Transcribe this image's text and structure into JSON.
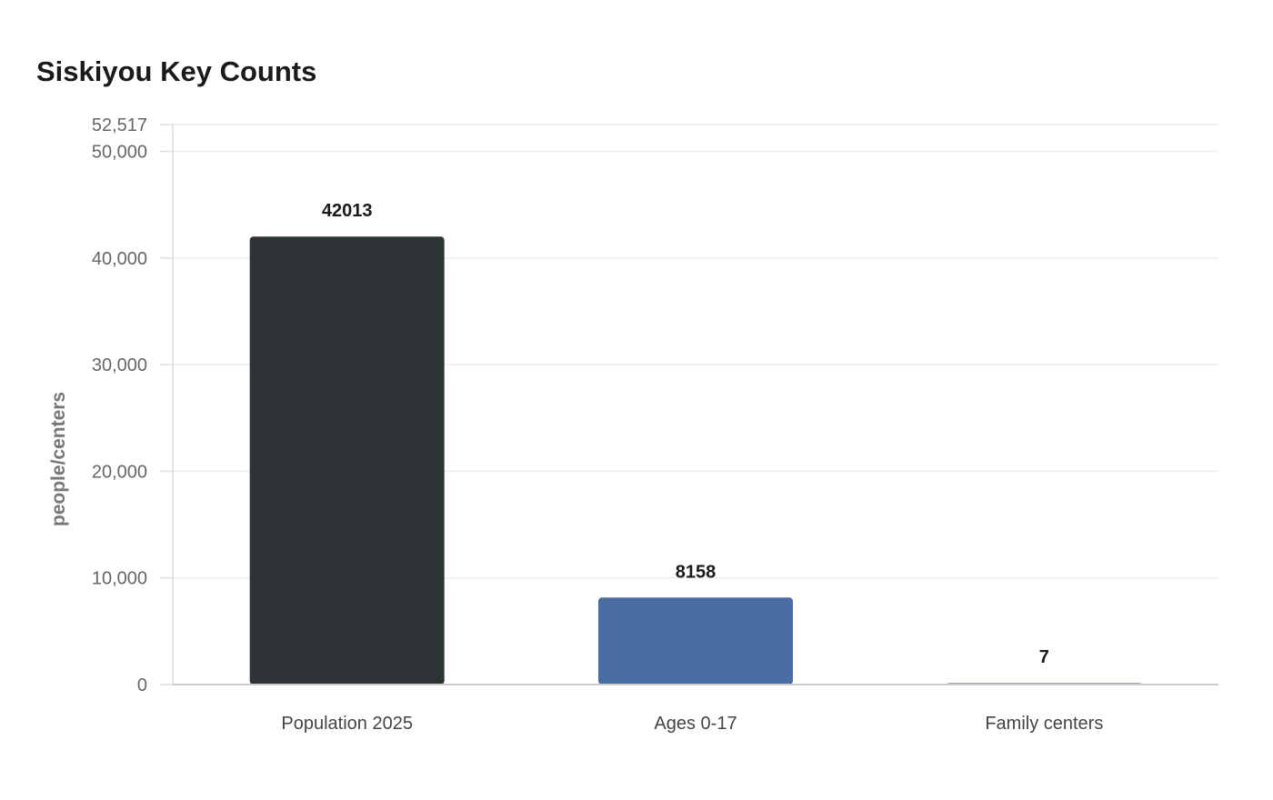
{
  "chart_data": {
    "type": "bar",
    "title": "Siskiyou Key Counts",
    "xlabel": "",
    "ylabel": "people/centers",
    "categories": [
      "Population 2025",
      "Ages 0-17",
      "Family centers"
    ],
    "values": [
      42013,
      8158,
      7
    ],
    "value_labels": [
      "42013",
      "8158",
      "7"
    ],
    "colors": [
      "#2e3436",
      "#4a6da4",
      "#9aa6b2"
    ],
    "ylim": [
      0,
      52517
    ],
    "yticks": [
      0,
      10000,
      20000,
      30000,
      40000,
      50000,
      52517
    ],
    "ytick_labels": [
      "0",
      "10,000",
      "20,000",
      "30,000",
      "40,000",
      "50,000",
      "52,517"
    ],
    "grid": true,
    "legend": "none"
  }
}
